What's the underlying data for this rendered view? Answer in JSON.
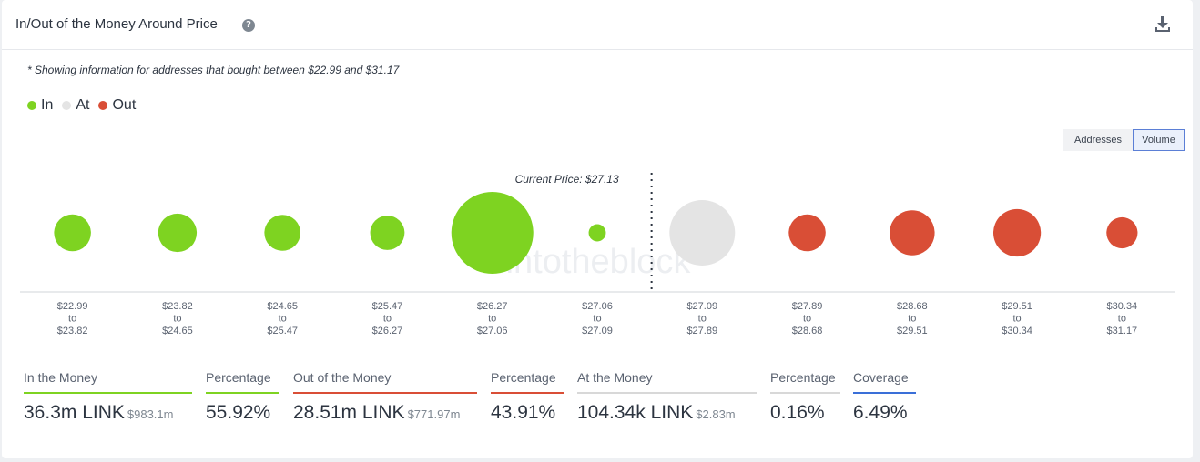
{
  "header": {
    "title": "In/Out of the Money Around Price",
    "help_icon": "question-circle-icon",
    "download_icon": "download-icon"
  },
  "note": "* Showing information for addresses that bought between $22.99 and $31.17",
  "legend": [
    {
      "label": "In",
      "color": "#7ed321"
    },
    {
      "label": "At",
      "color": "#e4e4e4"
    },
    {
      "label": "Out",
      "color": "#d94e36"
    }
  ],
  "toggles": {
    "addresses": "Addresses",
    "volume": "Volume",
    "selected": "Volume"
  },
  "chart_data": {
    "type": "bubble",
    "annotation": "Current Price: $27.13",
    "watermark": "intotheblock",
    "categories": [
      {
        "from": "$22.99",
        "to": "$23.82",
        "status": "in",
        "relative_size": 0.45
      },
      {
        "from": "$23.82",
        "to": "$24.65",
        "status": "in",
        "relative_size": 0.47
      },
      {
        "from": "$24.65",
        "to": "$25.47",
        "status": "in",
        "relative_size": 0.44
      },
      {
        "from": "$25.47",
        "to": "$26.27",
        "status": "in",
        "relative_size": 0.42
      },
      {
        "from": "$26.27",
        "to": "$27.06",
        "status": "in",
        "relative_size": 1.0
      },
      {
        "from": "$27.06",
        "to": "$27.09",
        "status": "in",
        "relative_size": 0.21
      },
      {
        "from": "$27.09",
        "to": "$27.89",
        "status": "at",
        "relative_size": 0.8
      },
      {
        "from": "$27.89",
        "to": "$28.68",
        "status": "out",
        "relative_size": 0.45
      },
      {
        "from": "$28.68",
        "to": "$29.51",
        "status": "out",
        "relative_size": 0.55
      },
      {
        "from": "$29.51",
        "to": "$30.34",
        "status": "out",
        "relative_size": 0.58
      },
      {
        "from": "$30.34",
        "to": "$31.17",
        "status": "out",
        "relative_size": 0.38
      }
    ],
    "to_word": "to",
    "current_price_after_index": 5
  },
  "stats": {
    "in": {
      "label": "In the Money",
      "value": "36.3m LINK",
      "sub": "$983.1m",
      "color": "#7ed321"
    },
    "in_pct": {
      "label": "Percentage",
      "value": "55.92%",
      "color": "#7ed321"
    },
    "out": {
      "label": "Out of the Money",
      "value": "28.51m LINK",
      "sub": "$771.97m",
      "color": "#d94e36"
    },
    "out_pct": {
      "label": "Percentage",
      "value": "43.91%",
      "color": "#d94e36"
    },
    "at": {
      "label": "At the Money",
      "value": "104.34k LINK",
      "sub": "$2.83m",
      "color": "#d8d8d8"
    },
    "at_pct": {
      "label": "Percentage",
      "value": "0.16%",
      "color": "#d8d8d8"
    },
    "coverage": {
      "label": "Coverage",
      "value": "6.49%",
      "color": "#3a6fd8"
    }
  }
}
